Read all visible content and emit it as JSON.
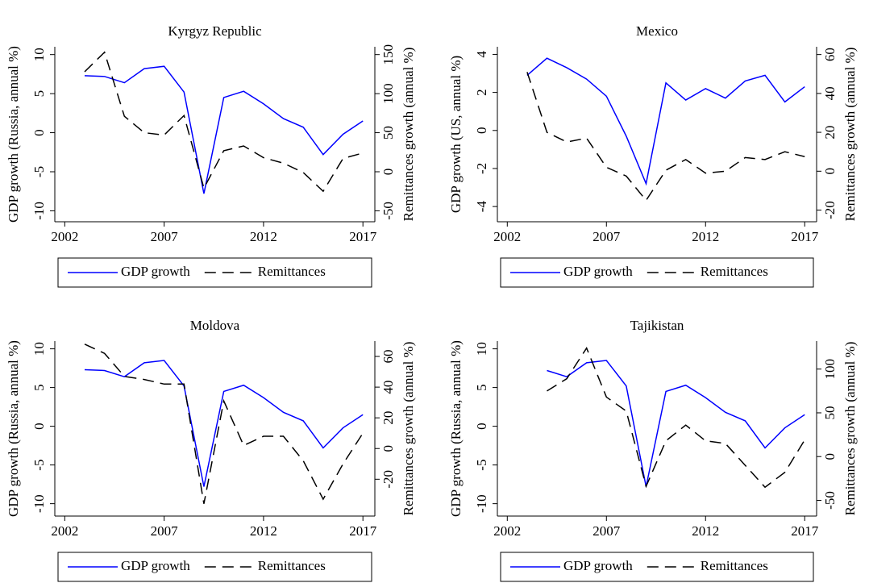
{
  "chart_data": [
    {
      "type": "line",
      "title": "Kyrgyz Republic",
      "ylabel": "GDP growth (Russia, annual %)",
      "y2label": "Remittances growth (annual %)",
      "x": [
        2003,
        2004,
        2005,
        2006,
        2007,
        2008,
        2009,
        2010,
        2011,
        2012,
        2013,
        2014,
        2015,
        2016,
        2017
      ],
      "xlim": [
        2001.5,
        2017.6
      ],
      "xticks": [
        2002,
        2007,
        2012,
        2017
      ],
      "ylim": [
        -11.4,
        11
      ],
      "yticks": [
        -10,
        -5,
        0,
        5,
        10
      ],
      "y2lim": [
        -64,
        160
      ],
      "y2ticks": [
        -50,
        0,
        50,
        100,
        150
      ],
      "legend": "bottom",
      "series": [
        {
          "name": "GDP growth",
          "color": "#0000ff",
          "linestyle": "solid",
          "values": [
            7.3,
            7.2,
            6.4,
            8.2,
            8.5,
            5.2,
            -7.8,
            4.5,
            5.3,
            3.7,
            1.8,
            0.7,
            -2.8,
            -0.2,
            1.5
          ]
        },
        {
          "name": "Remittances",
          "color": "#000000",
          "linestyle": "dashed",
          "axis": "y2",
          "values": [
            128,
            153,
            71,
            50,
            47,
            72,
            -21,
            27,
            33,
            18,
            11,
            -1,
            -25,
            17,
            24
          ]
        }
      ]
    },
    {
      "type": "line",
      "title": "Mexico",
      "ylabel": "GDP growth (US, annual %)",
      "y2label": "Remittances growth (annual %)",
      "x": [
        2003,
        2004,
        2005,
        2006,
        2007,
        2008,
        2009,
        2010,
        2011,
        2012,
        2013,
        2014,
        2015,
        2016,
        2017
      ],
      "xlim": [
        2001.5,
        2017.6
      ],
      "xticks": [
        2002,
        2007,
        2012,
        2017
      ],
      "ylim": [
        -4.8,
        4.4
      ],
      "yticks": [
        -4,
        -2,
        0,
        2,
        4
      ],
      "y2lim": [
        -26,
        64
      ],
      "y2ticks": [
        -20,
        0,
        20,
        40,
        60
      ],
      "legend": "bottom",
      "series": [
        {
          "name": "GDP growth",
          "color": "#0000ff",
          "linestyle": "solid",
          "values": [
            2.9,
            3.8,
            3.3,
            2.7,
            1.8,
            -0.3,
            -2.8,
            2.5,
            1.6,
            2.2,
            1.7,
            2.6,
            2.9,
            1.5,
            2.3
          ]
        },
        {
          "name": "Remittances",
          "color": "#000000",
          "linestyle": "dashed",
          "axis": "y2",
          "values": [
            51,
            20,
            15,
            17,
            2,
            -2.5,
            -15,
            0.5,
            6,
            -1,
            0,
            7,
            6,
            10,
            7.5
          ]
        }
      ]
    },
    {
      "type": "line",
      "title": "Moldova",
      "ylabel": "GDP growth (Russia, annual %)",
      "y2label": "Remittances growth (annual %)",
      "x": [
        2003,
        2004,
        2005,
        2006,
        2007,
        2008,
        2009,
        2010,
        2011,
        2012,
        2013,
        2014,
        2015,
        2016,
        2017
      ],
      "xlim": [
        2001.5,
        2017.6
      ],
      "xticks": [
        2002,
        2007,
        2012,
        2017
      ],
      "ylim": [
        -11.6,
        11
      ],
      "yticks": [
        -10,
        -5,
        0,
        5,
        10
      ],
      "y2lim": [
        -44,
        70
      ],
      "y2ticks": [
        -20,
        0,
        20,
        40,
        60
      ],
      "legend": "bottom",
      "series": [
        {
          "name": "GDP growth",
          "color": "#0000ff",
          "linestyle": "solid",
          "values": [
            7.3,
            7.2,
            6.4,
            8.2,
            8.5,
            5.2,
            -7.8,
            4.5,
            5.3,
            3.7,
            1.8,
            0.7,
            -2.8,
            -0.2,
            1.5
          ]
        },
        {
          "name": "Remittances",
          "color": "#000000",
          "linestyle": "dashed",
          "axis": "y2",
          "values": [
            68,
            62,
            47,
            45,
            42,
            42,
            -36,
            31,
            2,
            8,
            8,
            -8,
            -33,
            -10,
            10
          ]
        }
      ]
    },
    {
      "type": "line",
      "title": "Tajikistan",
      "ylabel": "GDP growth (Russia, annual %)",
      "y2label": "Remittances growth (annual %)",
      "x": [
        2004,
        2005,
        2006,
        2007,
        2008,
        2009,
        2010,
        2011,
        2012,
        2013,
        2014,
        2015,
        2016,
        2017
      ],
      "xlim": [
        2001.5,
        2017.6
      ],
      "xticks": [
        2002,
        2007,
        2012,
        2017
      ],
      "ylim": [
        -11.6,
        11
      ],
      "yticks": [
        -10,
        -5,
        0,
        5,
        10
      ],
      "y2lim": [
        -68,
        132
      ],
      "y2ticks": [
        -50,
        0,
        50,
        100
      ],
      "legend": "bottom",
      "series": [
        {
          "name": "GDP growth",
          "color": "#0000ff",
          "linestyle": "solid",
          "values": [
            7.2,
            6.4,
            8.2,
            8.5,
            5.2,
            -7.8,
            4.5,
            5.3,
            3.7,
            1.8,
            0.7,
            -2.8,
            -0.2,
            1.5
          ]
        },
        {
          "name": "Remittances",
          "color": "#000000",
          "linestyle": "dashed",
          "axis": "y2",
          "values": [
            75,
            89,
            124,
            68,
            52,
            -34,
            18,
            36,
            18,
            15,
            -10,
            -35,
            -18,
            19
          ]
        }
      ]
    }
  ]
}
